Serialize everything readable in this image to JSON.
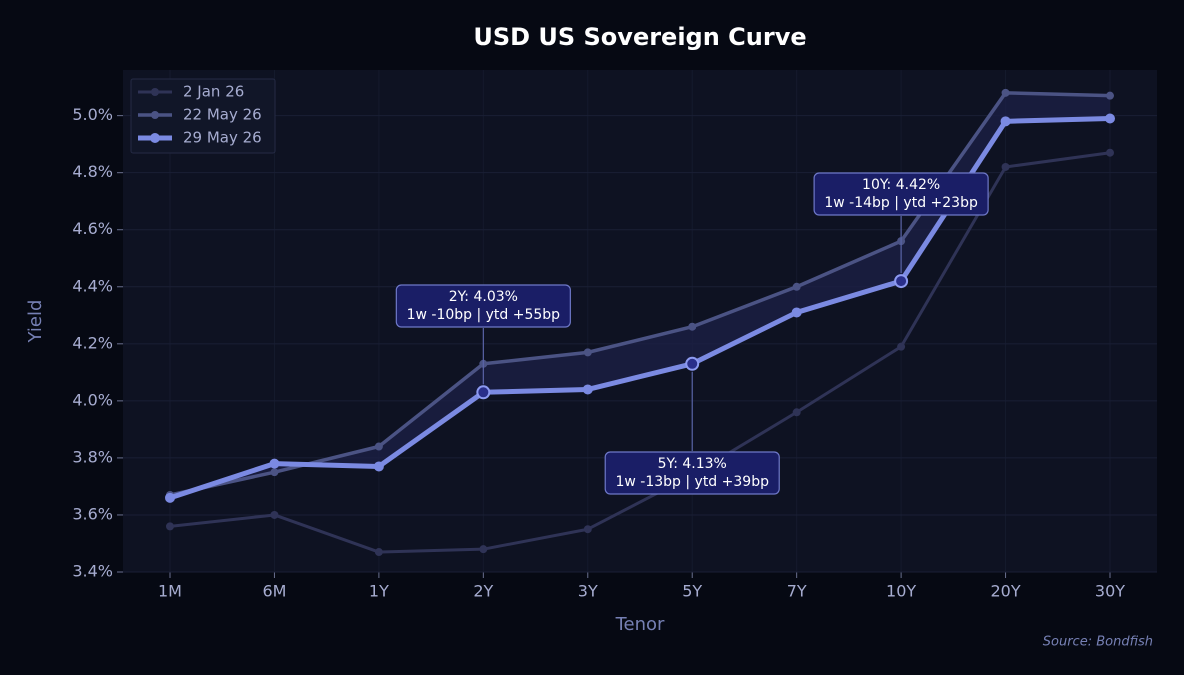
{
  "chart_data": {
    "type": "line",
    "title": "USD US Sovereign Curve",
    "x_label": "Tenor",
    "y_label": "Yield",
    "source": "Source: Bondfish",
    "categories": [
      "1M",
      "6M",
      "1Y",
      "2Y",
      "3Y",
      "5Y",
      "7Y",
      "10Y",
      "20Y",
      "30Y"
    ],
    "series": [
      {
        "name": "2 Jan 26",
        "color": "#2f3356",
        "values": [
          3.56,
          3.6,
          3.47,
          3.48,
          3.55,
          3.74,
          3.96,
          4.19,
          4.82,
          4.87
        ]
      },
      {
        "name": "22 May 26",
        "color": "#4b5384",
        "values": [
          3.67,
          3.75,
          3.84,
          4.13,
          4.17,
          4.26,
          4.4,
          4.56,
          5.08,
          5.07
        ]
      },
      {
        "name": "29 May 26",
        "color": "#7b8ae2",
        "values": [
          3.66,
          3.78,
          3.77,
          4.03,
          4.04,
          4.13,
          4.31,
          4.42,
          4.98,
          4.99
        ]
      }
    ],
    "ylim": [
      3.4,
      5.16
    ],
    "yticks": [
      {
        "value": 3.4,
        "label": "3.4%"
      },
      {
        "value": 3.6,
        "label": "3.6%"
      },
      {
        "value": 3.8,
        "label": "3.8%"
      },
      {
        "value": 4.0,
        "label": "4.0%"
      },
      {
        "value": 4.2,
        "label": "4.2%"
      },
      {
        "value": 4.4,
        "label": "4.4%"
      },
      {
        "value": 4.6,
        "label": "4.6%"
      },
      {
        "value": 4.8,
        "label": "4.8%"
      },
      {
        "value": 5.0,
        "label": "5.0%"
      }
    ],
    "grid": true,
    "legend": "upper left",
    "annotations": [
      {
        "lines": [
          "2Y: 4.03%",
          "1w -10bp | ytd +55bp"
        ]
      },
      {
        "lines": [
          "5Y: 4.13%",
          "1w -13bp | ytd +39bp"
        ]
      },
      {
        "lines": [
          "10Y: 4.42%",
          "1w -14bp | ytd +23bp"
        ]
      }
    ]
  }
}
